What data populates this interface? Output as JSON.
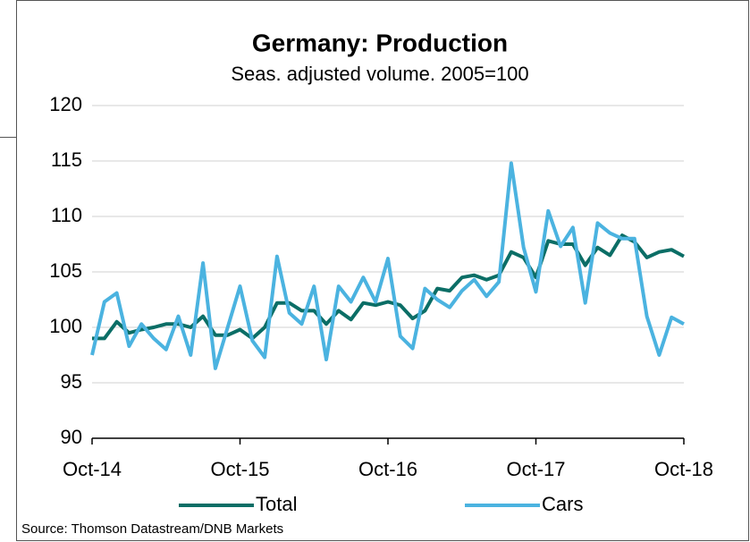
{
  "chart_data": {
    "type": "line",
    "title": "Germany: Production",
    "subtitle": "Seas. adjusted volume. 2005=100",
    "source": "Source:  Thomson  Datastream/DNB  Markets",
    "categories": [
      "Oct-14",
      null,
      null,
      null,
      null,
      null,
      null,
      null,
      null,
      null,
      null,
      null,
      "Oct-15",
      null,
      null,
      null,
      null,
      null,
      null,
      null,
      null,
      null,
      null,
      null,
      "Oct-16",
      null,
      null,
      null,
      null,
      null,
      null,
      null,
      null,
      null,
      null,
      null,
      "Oct-17",
      null,
      null,
      null,
      null,
      null,
      null,
      null,
      null,
      null,
      null,
      null,
      "Oct-18"
    ],
    "series": [
      {
        "name": "Total",
        "color": "#0b6e66",
        "values": [
          99,
          99,
          100.5,
          99.5,
          99.8,
          100,
          100.3,
          100.3,
          100,
          101,
          99.3,
          99.3,
          99.8,
          99,
          100,
          102.2,
          102.2,
          101.5,
          101.5,
          100.3,
          101.5,
          100.7,
          102.2,
          102,
          102.3,
          102,
          100.8,
          101.5,
          103.5,
          103.3,
          104.5,
          104.7,
          104.3,
          104.7,
          106.8,
          106.3,
          104.5,
          107.8,
          107.5,
          107.5,
          105.6,
          107.2,
          106.5,
          108.3,
          107.7,
          106.3,
          106.8,
          107,
          106.4
        ]
      },
      {
        "name": "Cars",
        "color": "#4bb3e0",
        "values": [
          97.5,
          102.3,
          103.1,
          98.3,
          100.3,
          99,
          98,
          101,
          97.5,
          105.8,
          96.3,
          100,
          103.7,
          98.8,
          97.3,
          106.4,
          101.3,
          100.3,
          103.7,
          97.1,
          103.7,
          102.3,
          104.5,
          102.3,
          106.2,
          99.2,
          98.1,
          103.5,
          102.5,
          101.8,
          103.3,
          104.3,
          102.8,
          104.1,
          114.8,
          107.2,
          103.2,
          110.5,
          107.3,
          109,
          102.2,
          109.4,
          108.5,
          108,
          108,
          101,
          97.5,
          100.9,
          100.3
        ]
      }
    ],
    "ylim": [
      90,
      120
    ],
    "yticks": [
      90,
      95,
      100,
      105,
      110,
      115,
      120
    ],
    "grid": true
  }
}
